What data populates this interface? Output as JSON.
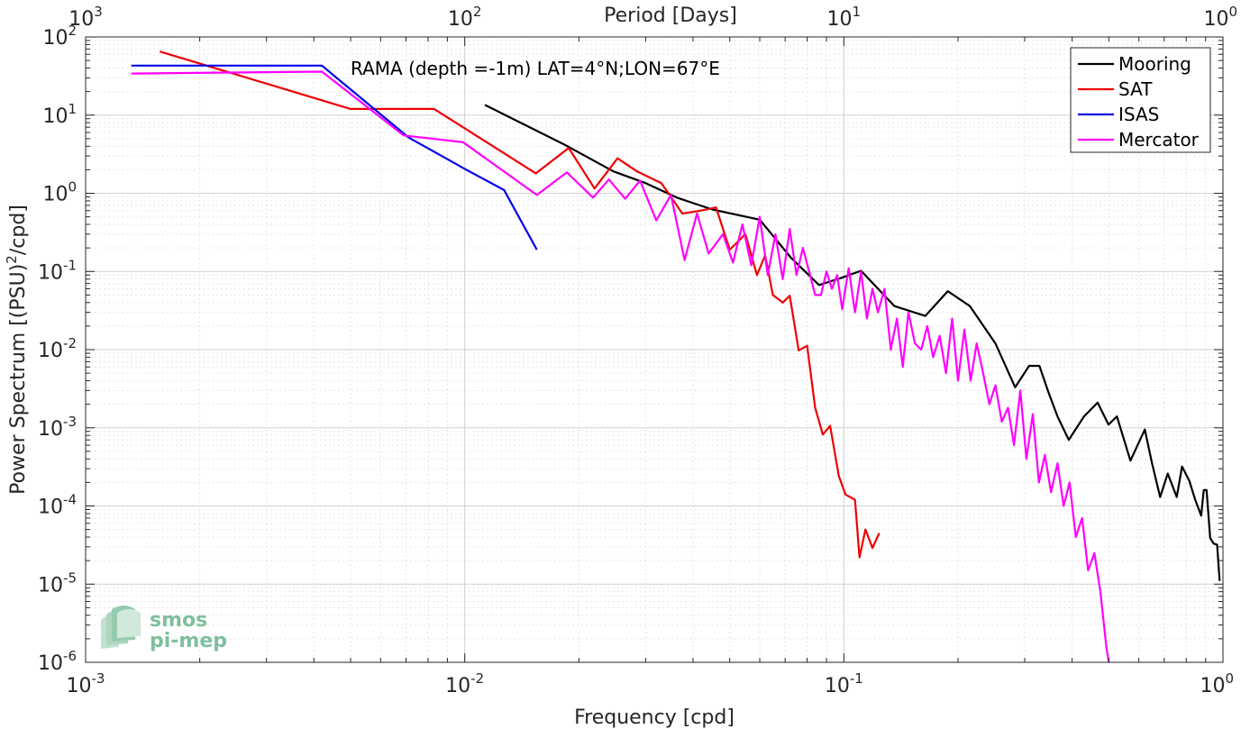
{
  "chart_data": {
    "type": "line",
    "title": "",
    "annotation": "RAMA (depth =-1m) LAT=4°N;LON=67°E",
    "xlabel": "Frequency [cpd]",
    "ylabel": "Power Spectrum [(PSU)²/cpd]",
    "ylabel_parts": {
      "pre": "Power Spectrum [(PSU)",
      "sup": "2",
      "post": "/cpd]"
    },
    "top_xlabel": "Period [Days]",
    "xscale": "log",
    "yscale": "log",
    "xlim": [
      0.001,
      1
    ],
    "ylim": [
      1e-06,
      100
    ],
    "grid": true,
    "legend_position": "top-right",
    "x_ticks": [
      {
        "value": 0.001,
        "base": "10",
        "exp": "-3"
      },
      {
        "value": 0.01,
        "base": "10",
        "exp": "-2"
      },
      {
        "value": 0.1,
        "base": "10",
        "exp": "-1"
      },
      {
        "value": 1,
        "base": "10",
        "exp": "0"
      }
    ],
    "y_ticks": [
      {
        "value": 100,
        "base": "10",
        "exp": "2"
      },
      {
        "value": 10,
        "base": "10",
        "exp": "1"
      },
      {
        "value": 1,
        "base": "10",
        "exp": "0"
      },
      {
        "value": 0.1,
        "base": "10",
        "exp": "-1"
      },
      {
        "value": 0.01,
        "base": "10",
        "exp": "-2"
      },
      {
        "value": 0.001,
        "base": "10",
        "exp": "-3"
      },
      {
        "value": 0.0001,
        "base": "10",
        "exp": "-4"
      },
      {
        "value": 1e-05,
        "base": "10",
        "exp": "-5"
      },
      {
        "value": 1e-06,
        "base": "10",
        "exp": "-6"
      }
    ],
    "top_ticks": [
      {
        "value": 0.001,
        "base": "10",
        "exp": "3"
      },
      {
        "value": 0.01,
        "base": "10",
        "exp": "2"
      },
      {
        "value": 0.1,
        "base": "10",
        "exp": "1"
      },
      {
        "value": 1,
        "base": "10",
        "exp": "0"
      }
    ],
    "series": [
      {
        "name": "Mooring",
        "color": "#000000",
        "x": [
          0.0113,
          0.0183,
          0.0247,
          0.03,
          0.0365,
          0.045,
          0.06,
          0.0725,
          0.086,
          0.098,
          0.111,
          0.136,
          0.164,
          0.188,
          0.215,
          0.251,
          0.283,
          0.308,
          0.328,
          0.347,
          0.366,
          0.392,
          0.43,
          0.467,
          0.499,
          0.525,
          0.57,
          0.622,
          0.65,
          0.683,
          0.715,
          0.755,
          0.78,
          0.815,
          0.845,
          0.876,
          0.89,
          0.905,
          0.925,
          0.945,
          0.965,
          0.98
        ],
        "values": [
          13.5,
          4.2,
          1.9,
          1.35,
          0.87,
          0.62,
          0.46,
          0.15,
          0.067,
          0.082,
          0.102,
          0.036,
          0.027,
          0.056,
          0.036,
          0.012,
          0.0033,
          0.0062,
          0.0062,
          0.0028,
          0.0014,
          0.0007,
          0.0014,
          0.0021,
          0.0011,
          0.0014,
          0.00038,
          0.00095,
          0.00035,
          0.00013,
          0.00026,
          0.00013,
          0.00032,
          0.00021,
          0.00012,
          7.5e-05,
          0.00016,
          0.00016,
          3.9e-05,
          3.3e-05,
          3.2e-05,
          1.1e-05
        ]
      },
      {
        "name": "SAT",
        "color": "#ee0000",
        "x": [
          0.00157,
          0.005,
          0.0083,
          0.0154,
          0.0188,
          0.022,
          0.0253,
          0.0285,
          0.033,
          0.035,
          0.0375,
          0.042,
          0.046,
          0.05,
          0.055,
          0.059,
          0.062,
          0.065,
          0.069,
          0.072,
          0.076,
          0.08,
          0.084,
          0.088,
          0.092,
          0.097,
          0.101,
          0.107,
          0.11,
          0.114,
          0.119,
          0.124
        ],
        "values": [
          65,
          12,
          12,
          1.8,
          3.8,
          1.15,
          2.8,
          1.9,
          1.35,
          0.9,
          0.55,
          0.6,
          0.66,
          0.19,
          0.3,
          0.09,
          0.16,
          0.05,
          0.04,
          0.049,
          0.0098,
          0.0112,
          0.0018,
          0.00082,
          0.00106,
          0.00024,
          0.00014,
          0.00012,
          2.2e-05,
          5e-05,
          2.9e-05,
          4.5e-05
        ]
      },
      {
        "name": "ISAS",
        "color": "#0000ee",
        "x": [
          0.00132,
          0.0042,
          0.0071,
          0.0101,
          0.0127,
          0.0155
        ],
        "values": [
          43,
          43,
          5.2,
          2.0,
          1.1,
          0.19
        ]
      },
      {
        "name": "Mercator",
        "color": "#ff00ff",
        "x": [
          0.00132,
          0.0042,
          0.0069,
          0.0099,
          0.0155,
          0.0186,
          0.0218,
          0.024,
          0.0265,
          0.029,
          0.032,
          0.035,
          0.038,
          0.041,
          0.044,
          0.048,
          0.051,
          0.054,
          0.057,
          0.06,
          0.063,
          0.066,
          0.069,
          0.072,
          0.075,
          0.078,
          0.081,
          0.084,
          0.087,
          0.09,
          0.093,
          0.096,
          0.099,
          0.103,
          0.107,
          0.111,
          0.115,
          0.119,
          0.123,
          0.128,
          0.133,
          0.138,
          0.143,
          0.148,
          0.154,
          0.16,
          0.166,
          0.172,
          0.179,
          0.186,
          0.193,
          0.2,
          0.208,
          0.216,
          0.224,
          0.233,
          0.242,
          0.251,
          0.261,
          0.271,
          0.281,
          0.292,
          0.303,
          0.315,
          0.327,
          0.339,
          0.352,
          0.366,
          0.38,
          0.394,
          0.409,
          0.425,
          0.441,
          0.458,
          0.475,
          0.493,
          0.5
        ],
        "values": [
          34,
          36,
          5.5,
          4.5,
          0.95,
          1.85,
          0.88,
          1.5,
          0.85,
          1.45,
          0.45,
          0.95,
          0.14,
          0.55,
          0.17,
          0.3,
          0.13,
          0.4,
          0.12,
          0.5,
          0.09,
          0.3,
          0.08,
          0.35,
          0.09,
          0.2,
          0.1,
          0.05,
          0.05,
          0.1,
          0.06,
          0.09,
          0.033,
          0.11,
          0.03,
          0.1,
          0.025,
          0.06,
          0.03,
          0.06,
          0.01,
          0.025,
          0.006,
          0.03,
          0.012,
          0.01,
          0.02,
          0.008,
          0.015,
          0.005,
          0.025,
          0.004,
          0.018,
          0.004,
          0.012,
          0.005,
          0.002,
          0.0035,
          0.0012,
          0.0018,
          0.0006,
          0.003,
          0.0004,
          0.0015,
          0.0002,
          0.00045,
          0.00015,
          0.00035,
          0.0001,
          0.0002,
          4e-05,
          7e-05,
          1.5e-05,
          2.5e-05,
          8e-06,
          1.5e-06,
          1e-06
        ]
      }
    ]
  },
  "logo": {
    "line1": "smos",
    "line2": "pi-mep"
  }
}
